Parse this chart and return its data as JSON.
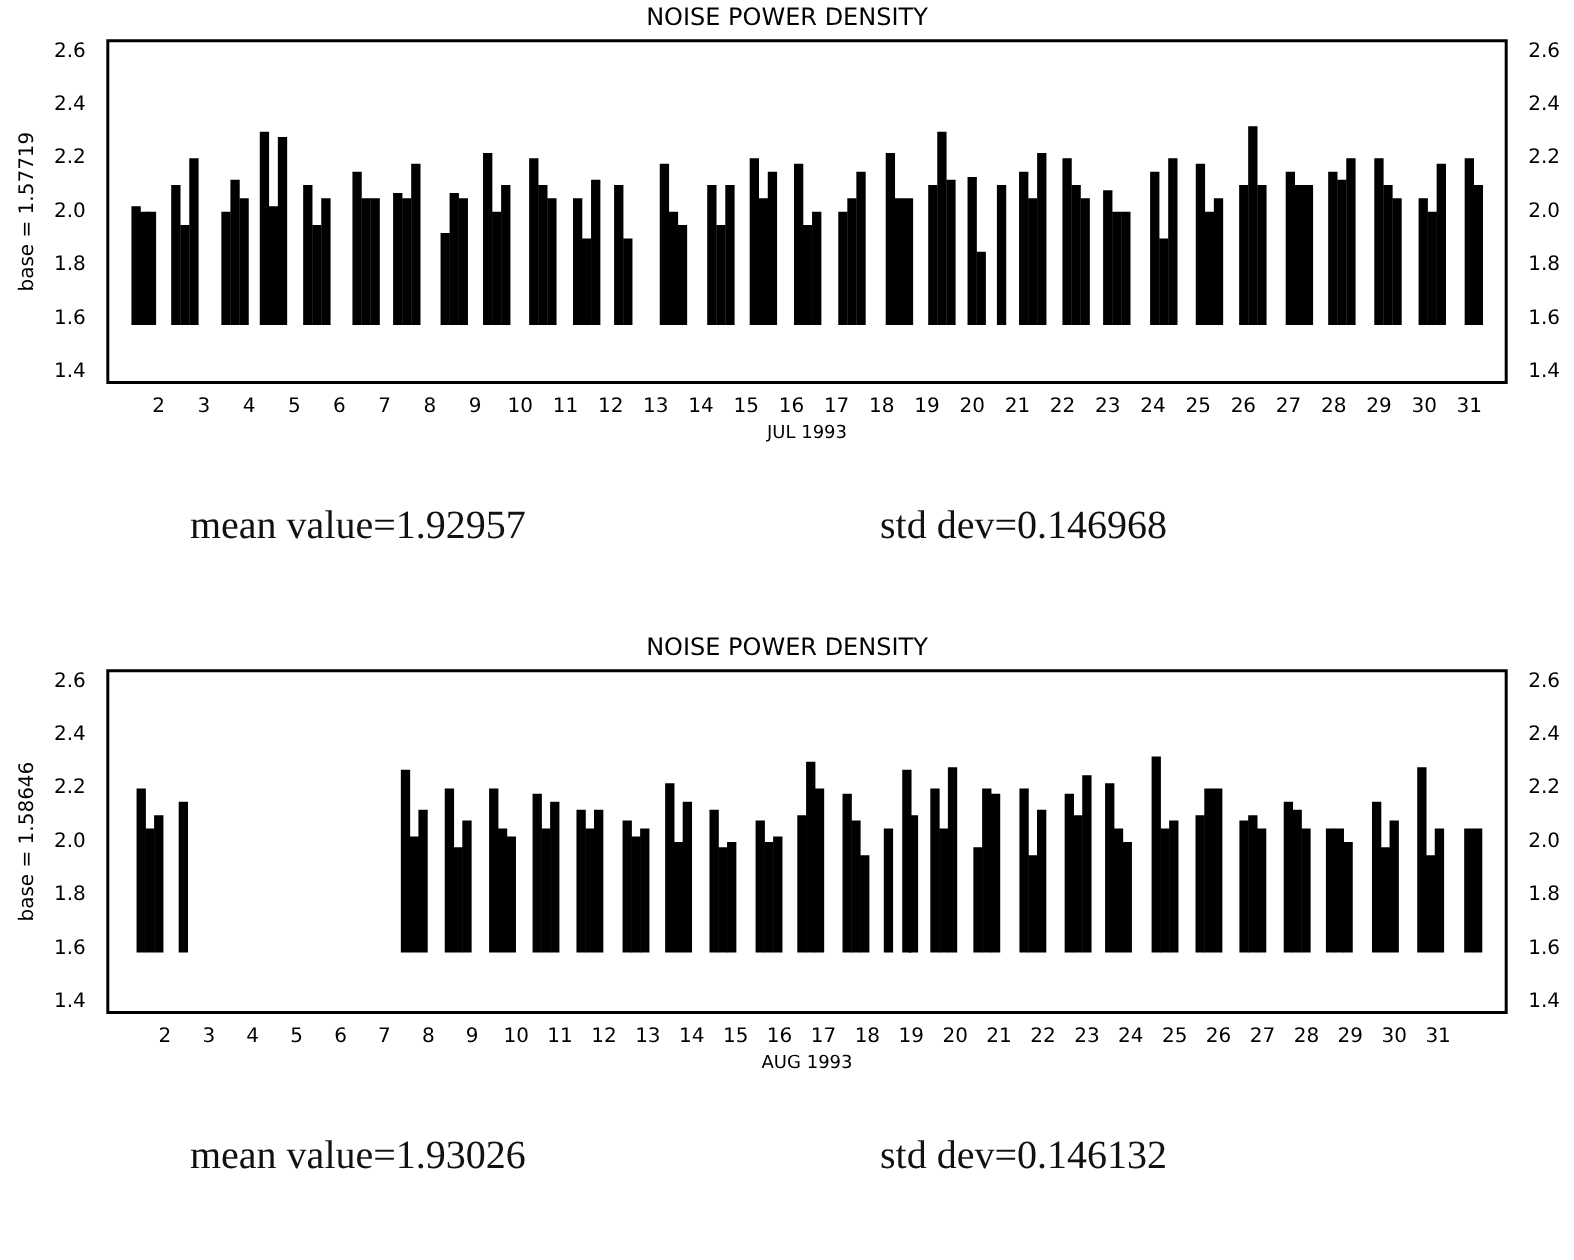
{
  "chart_data": [
    {
      "type": "bar",
      "title": "NOISE POWER DENSITY",
      "xlabel": "JUL 1993",
      "ylabel": "base = 1.57719",
      "color": "#000000",
      "x": [
        1.5,
        1.67,
        1.84,
        2.38,
        2.58,
        2.78,
        3.49,
        3.69,
        3.89,
        4.34,
        4.54,
        4.74,
        5.3,
        5.5,
        5.7,
        6.39,
        6.59,
        6.79,
        7.29,
        7.49,
        7.69,
        8.34,
        8.54,
        8.74,
        9.28,
        9.48,
        9.68,
        10.3,
        10.5,
        10.7,
        11.27,
        11.47,
        11.67,
        12.18,
        12.38,
        13.19,
        13.39,
        13.59,
        14.24,
        14.44,
        14.64,
        15.18,
        15.38,
        15.58,
        16.16,
        16.36,
        16.56,
        17.14,
        17.34,
        17.54,
        18.19,
        18.39,
        18.59,
        19.13,
        19.33,
        19.53,
        20.0,
        20.2,
        20.65,
        21.14,
        21.34,
        21.54,
        22.1,
        22.3,
        22.5,
        23.0,
        23.2,
        23.4,
        24.04,
        24.24,
        24.44,
        25.05,
        25.25,
        25.45,
        26.01,
        26.21,
        26.41,
        27.04,
        27.24,
        27.44,
        27.98,
        28.18,
        28.38,
        29.0,
        29.2,
        29.4,
        29.98,
        30.18,
        30.38,
        31.0,
        31.2
      ],
      "values": [
        0.44,
        0.42,
        0.42,
        0.52,
        0.37,
        0.62,
        0.42,
        0.54,
        0.47,
        0.72,
        0.44,
        0.7,
        0.52,
        0.37,
        0.47,
        0.57,
        0.47,
        0.47,
        0.49,
        0.47,
        0.6,
        0.34,
        0.49,
        0.47,
        0.64,
        0.42,
        0.52,
        0.62,
        0.52,
        0.47,
        0.47,
        0.32,
        0.54,
        0.52,
        0.32,
        0.6,
        0.42,
        0.37,
        0.52,
        0.37,
        0.52,
        0.62,
        0.47,
        0.57,
        0.6,
        0.37,
        0.42,
        0.42,
        0.47,
        0.57,
        0.64,
        0.47,
        0.47,
        0.52,
        0.72,
        0.54,
        0.55,
        0.27,
        0.52,
        0.57,
        0.47,
        0.64,
        0.62,
        0.52,
        0.47,
        0.5,
        0.42,
        0.42,
        0.57,
        0.32,
        0.62,
        0.6,
        0.42,
        0.47,
        0.52,
        0.74,
        0.52,
        0.57,
        0.52,
        0.52,
        0.57,
        0.54,
        0.62,
        0.62,
        0.52,
        0.47,
        0.47,
        0.42,
        0.6,
        0.62,
        0.52
      ],
      "base": [
        1.57719,
        1.57719,
        1.57719,
        1.57719,
        1.57719,
        1.57719,
        1.57719,
        1.57719,
        1.57719,
        1.57719,
        1.57719,
        1.57719,
        1.57719,
        1.57719,
        1.57719,
        1.57719,
        1.57719,
        1.57719,
        1.57719,
        1.57719,
        1.57719,
        1.57719,
        1.57719,
        1.57719,
        1.57719,
        1.57719,
        1.57719,
        1.57719,
        1.57719,
        1.57719,
        1.57719,
        1.57719,
        1.57719,
        1.57719,
        1.57719,
        1.57719,
        1.57719,
        1.57719,
        1.57719,
        1.57719,
        1.57719,
        1.57719,
        1.57719,
        1.57719,
        1.57719,
        1.57719,
        1.57719,
        1.57719,
        1.57719,
        1.57719,
        1.57719,
        1.57719,
        1.57719,
        1.57719,
        1.57719,
        1.57719,
        1.57719,
        1.57719,
        1.57719,
        1.57719,
        1.57719,
        1.57719,
        1.57719,
        1.57719,
        1.57719,
        1.57719,
        1.57719,
        1.57719,
        1.57719,
        1.57719,
        1.57719,
        1.57719,
        1.57719,
        1.57719,
        1.57719,
        1.57719,
        1.57719,
        1.57719,
        1.57719,
        1.57719,
        1.57719,
        1.57719,
        1.57719,
        1.57719,
        1.57719,
        1.57719,
        1.57719,
        1.57719,
        1.57719,
        1.57719,
        1.57719
      ],
      "xlim": [
        1.39,
        31.3
      ],
      "xticks": [
        2,
        3,
        4,
        5,
        6,
        7,
        8,
        9,
        10,
        11,
        12,
        13,
        14,
        15,
        16,
        17,
        18,
        19,
        20,
        21,
        22,
        23,
        24,
        25,
        26,
        27,
        28,
        29,
        30,
        31
      ],
      "ylim": [
        1.36,
        2.64
      ],
      "yticks": [
        1.4,
        1.6,
        1.8,
        {
          "value": 2,
          "label": "2.0"
        },
        2.2,
        2.4,
        2.6
      ],
      "y2lim": [
        1.36,
        2.64
      ],
      "y2ticks": [
        1.4,
        1.6,
        1.8,
        {
          "value": 2,
          "label": "2.0"
        },
        2.2,
        2.4,
        2.6
      ],
      "annotations": [
        "mean value=1.92957",
        "std dev=0.146968"
      ]
    },
    {
      "type": "bar",
      "title": "NOISE POWER DENSITY",
      "xlabel": "AUG 1993",
      "ylabel": "base = 1.58646",
      "color": "#000000",
      "x": [
        1.46,
        1.66,
        1.86,
        2.42,
        7.48,
        7.68,
        7.88,
        8.48,
        8.68,
        8.88,
        9.49,
        9.69,
        9.89,
        10.48,
        10.68,
        10.88,
        11.48,
        11.68,
        11.88,
        12.53,
        12.73,
        12.93,
        13.5,
        13.7,
        13.9,
        14.51,
        14.71,
        14.91,
        15.56,
        15.76,
        15.96,
        16.51,
        16.71,
        16.91,
        17.54,
        17.74,
        17.94,
        18.48,
        18.9,
        19.05,
        19.54,
        19.74,
        19.94,
        20.52,
        20.72,
        20.92,
        21.57,
        21.77,
        21.97,
        22.6,
        22.8,
        23.0,
        23.52,
        23.72,
        23.92,
        24.58,
        24.78,
        24.98,
        25.58,
        25.78,
        25.98,
        26.58,
        26.78,
        26.98,
        27.59,
        27.79,
        27.99,
        28.55,
        28.75,
        28.95,
        29.6,
        29.8,
        30.0,
        30.63,
        30.83,
        31.03,
        31.7,
        31.9
      ],
      "values": [
        0.61,
        0.46,
        0.51,
        0.56,
        0.68,
        0.43,
        0.53,
        0.61,
        0.39,
        0.49,
        0.61,
        0.46,
        0.43,
        0.59,
        0.46,
        0.56,
        0.53,
        0.46,
        0.53,
        0.49,
        0.43,
        0.46,
        0.63,
        0.41,
        0.56,
        0.53,
        0.39,
        0.41,
        0.49,
        0.41,
        0.43,
        0.51,
        0.71,
        0.61,
        0.59,
        0.49,
        0.36,
        0.46,
        0.68,
        0.51,
        0.61,
        0.46,
        0.69,
        0.39,
        0.61,
        0.59,
        0.61,
        0.36,
        0.53,
        0.59,
        0.51,
        0.66,
        0.63,
        0.46,
        0.41,
        0.73,
        0.46,
        0.49,
        0.51,
        0.61,
        0.61,
        0.49,
        0.51,
        0.46,
        0.56,
        0.53,
        0.46,
        0.46,
        0.46,
        0.41,
        0.56,
        0.39,
        0.49,
        0.69,
        0.36,
        0.46,
        0.46,
        0.46
      ],
      "base": [
        1.58646,
        1.58646,
        1.58646,
        1.58646,
        1.58646,
        1.58646,
        1.58646,
        1.58646,
        1.58646,
        1.58646,
        1.58646,
        1.58646,
        1.58646,
        1.58646,
        1.58646,
        1.58646,
        1.58646,
        1.58646,
        1.58646,
        1.58646,
        1.58646,
        1.58646,
        1.58646,
        1.58646,
        1.58646,
        1.58646,
        1.58646,
        1.58646,
        1.58646,
        1.58646,
        1.58646,
        1.58646,
        1.58646,
        1.58646,
        1.58646,
        1.58646,
        1.58646,
        1.58646,
        1.58646,
        1.58646,
        1.58646,
        1.58646,
        1.58646,
        1.58646,
        1.58646,
        1.58646,
        1.58646,
        1.58646,
        1.58646,
        1.58646,
        1.58646,
        1.58646,
        1.58646,
        1.58646,
        1.58646,
        1.58646,
        1.58646,
        1.58646,
        1.58646,
        1.58646,
        1.58646,
        1.58646,
        1.58646,
        1.58646,
        1.58646,
        1.58646,
        1.58646,
        1.58646,
        1.58646,
        1.58646,
        1.58646,
        1.58646,
        1.58646,
        1.58646,
        1.58646,
        1.58646,
        1.58646,
        1.58646
      ],
      "xlim": [
        1.23,
        32.02
      ],
      "xticks": [
        2,
        3,
        4,
        5,
        6,
        7,
        8,
        9,
        10,
        11,
        12,
        13,
        14,
        15,
        16,
        17,
        18,
        19,
        20,
        21,
        22,
        23,
        24,
        25,
        26,
        27,
        28,
        29,
        30,
        31
      ],
      "ylim": [
        1.36,
        2.64
      ],
      "yticks": [
        1.4,
        1.6,
        1.8,
        {
          "value": 2,
          "label": "2.0"
        },
        2.2,
        2.4,
        2.6
      ],
      "y2lim": [
        1.36,
        2.64
      ],
      "y2ticks": [
        1.4,
        1.6,
        1.8,
        {
          "value": 2,
          "label": "2.0"
        },
        2.2,
        2.4,
        2.6
      ],
      "annotations": [
        "mean value=1.93026",
        "std dev=0.146132"
      ]
    }
  ]
}
